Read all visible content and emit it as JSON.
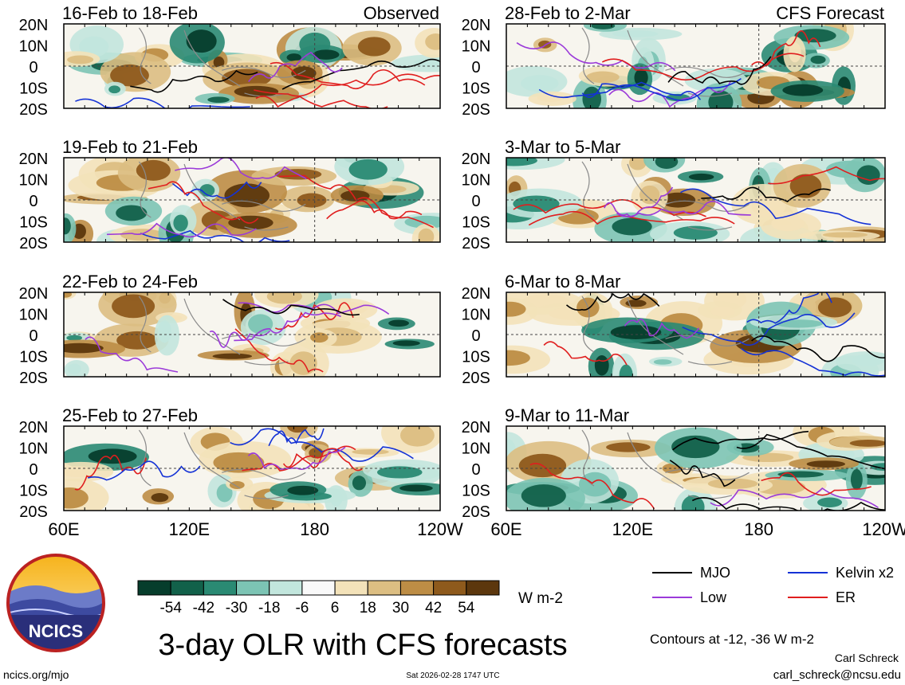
{
  "chart_data": {
    "type": "heatmap",
    "title": "3-day OLR with CFS forecasts",
    "left_column_header": "Observed",
    "right_column_header": "CFS Forecast",
    "panels_left": [
      {
        "label": "16-Feb to 18-Feb"
      },
      {
        "label": "19-Feb to 21-Feb"
      },
      {
        "label": "22-Feb to 24-Feb"
      },
      {
        "label": "25-Feb to 27-Feb"
      }
    ],
    "panels_right": [
      {
        "label": "28-Feb to 2-Mar"
      },
      {
        "label": "3-Mar to 5-Mar"
      },
      {
        "label": "6-Mar to 8-Mar"
      },
      {
        "label": "9-Mar to 11-Mar"
      }
    ],
    "y_ticks": [
      "20N",
      "10N",
      "0",
      "10S",
      "20S"
    ],
    "x_ticks": [
      "60E",
      "120E",
      "180",
      "120W"
    ],
    "ylim": [
      -20,
      20
    ],
    "xlim_lon": [
      60,
      240
    ],
    "colorbar": {
      "levels": [
        "-54",
        "-42",
        "-30",
        "-18",
        "-6",
        "6",
        "18",
        "30",
        "42",
        "54"
      ],
      "colors": [
        "#063d2c",
        "#12614a",
        "#2a8a73",
        "#7cc4b4",
        "#c2e6dd",
        "#f9f9f9",
        "#f3e2b9",
        "#dcbe82",
        "#bd8d45",
        "#8e5a1c",
        "#5c370d"
      ],
      "units": "W m-2"
    },
    "legend": [
      {
        "label": "MJO",
        "color": "#000000"
      },
      {
        "label": "Kelvin x2",
        "color": "#1432d6"
      },
      {
        "label": "Low",
        "color": "#9b3ad9"
      },
      {
        "label": "ER",
        "color": "#e01e1e"
      }
    ],
    "contour_note": "Contours at -12, -36 W m-2"
  },
  "logo": {
    "text": "NCICS"
  },
  "footer": {
    "left_url": "ncics.org/mjo",
    "timestamp": "Sat 2026-02-28 1747 UTC",
    "author": "Carl Schreck",
    "email": "carl_schreck@ncsu.edu"
  }
}
